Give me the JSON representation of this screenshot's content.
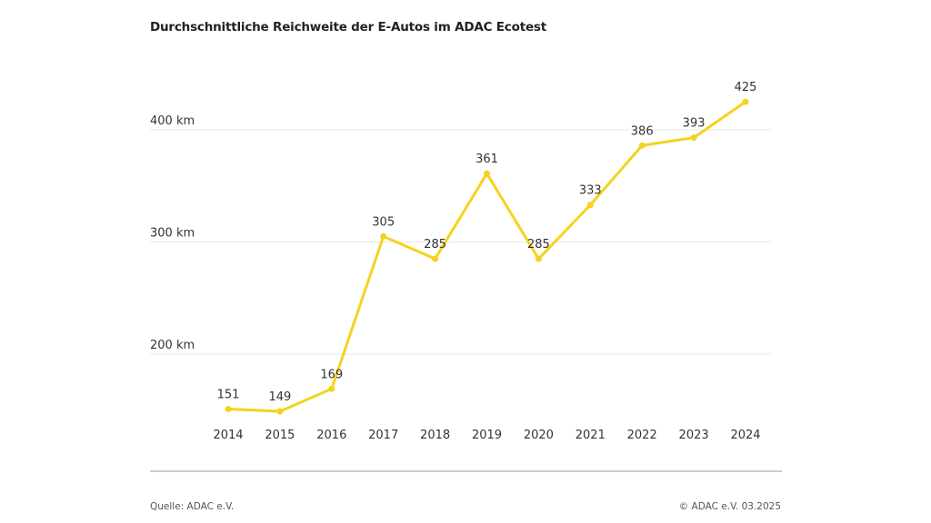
{
  "chart_data": {
    "type": "line",
    "title": "Durchschnittliche Reichweite der E-Autos im ADAC Ecotest",
    "categories": [
      "2014",
      "2015",
      "2016",
      "2017",
      "2018",
      "2019",
      "2020",
      "2021",
      "2022",
      "2023",
      "2024"
    ],
    "values": [
      151,
      149,
      169,
      305,
      285,
      361,
      285,
      333,
      386,
      393,
      425
    ],
    "yticks": [
      200,
      300,
      400
    ],
    "ytick_labels": [
      "200 km",
      "300 km",
      "400 km"
    ],
    "grid": true,
    "line_color": "#f5d31e",
    "data_labels": true
  },
  "footer": {
    "source": "Quelle: ADAC e.V.",
    "copyright": "© ADAC e.V. 03.2025"
  }
}
